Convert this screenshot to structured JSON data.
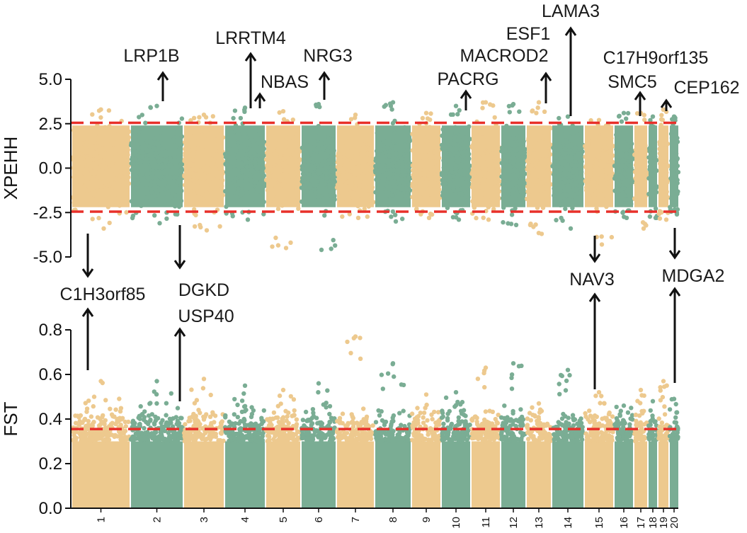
{
  "chart_data": {
    "type": "scatter",
    "colors": {
      "tan": "#edc98e",
      "green": "#7aad94",
      "threshold": "#e8302a",
      "arrow": "#111111"
    },
    "chromosomes": [
      "1",
      "2",
      "3",
      "4",
      "5",
      "6",
      "7",
      "8",
      "9",
      "10",
      "11",
      "12",
      "13",
      "14",
      "15",
      "16",
      "17",
      "18",
      "19",
      "20"
    ],
    "chromosome_colors": [
      "tan",
      "green",
      "tan",
      "green",
      "tan",
      "green",
      "tan",
      "green",
      "tan",
      "green",
      "tan",
      "green",
      "tan",
      "green",
      "tan",
      "green",
      "tan",
      "green",
      "tan",
      "green"
    ],
    "panels": [
      {
        "id": "xpehh",
        "ylabel": "XPEHH",
        "ylim": [
          -5.0,
          5.0
        ],
        "yticks": [
          "-5.0",
          "-2.5",
          "0.0",
          "2.5",
          "5.0"
        ],
        "thresholds": [
          2.55,
          -2.45
        ],
        "per_chromosome": [
          {
            "chr": "1",
            "max": 3.3,
            "min": -3.4
          },
          {
            "chr": "2",
            "max": 3.5,
            "min": -3.1
          },
          {
            "chr": "3",
            "max": 3.0,
            "min": -3.5
          },
          {
            "chr": "4",
            "max": 3.4,
            "min": -2.9
          },
          {
            "chr": "5",
            "max": 3.2,
            "min": -4.5
          },
          {
            "chr": "6",
            "max": 3.6,
            "min": -4.6
          },
          {
            "chr": "7",
            "max": 3.0,
            "min": -2.8
          },
          {
            "chr": "8",
            "max": 3.7,
            "min": -3.0
          },
          {
            "chr": "9",
            "max": 3.1,
            "min": -2.8
          },
          {
            "chr": "10",
            "max": 3.5,
            "min": -2.9
          },
          {
            "chr": "11",
            "max": 3.7,
            "min": -2.9
          },
          {
            "chr": "12",
            "max": 3.6,
            "min": -3.2
          },
          {
            "chr": "13",
            "max": 3.7,
            "min": -3.7
          },
          {
            "chr": "14",
            "max": 2.9,
            "min": -3.4
          },
          {
            "chr": "15",
            "max": 2.7,
            "min": -4.3
          },
          {
            "chr": "16",
            "max": 3.1,
            "min": -2.8
          },
          {
            "chr": "17",
            "max": 3.1,
            "min": -3.4
          },
          {
            "chr": "18",
            "max": 2.9,
            "min": -2.8
          },
          {
            "chr": "19",
            "max": 3.3,
            "min": -2.9
          },
          {
            "chr": "20",
            "max": 2.9,
            "min": -2.6
          }
        ],
        "annotations": [
          {
            "gene": "LRP1B",
            "chr": "2",
            "direction": "up",
            "peak": 3.5
          },
          {
            "gene": "LRRTM4",
            "chr": "4",
            "direction": "up",
            "peak": 3.4
          },
          {
            "gene": "NBAS",
            "chr": "4",
            "direction": "up",
            "peak": 3.4
          },
          {
            "gene": "NRG3",
            "chr": "6",
            "direction": "up",
            "peak": 3.6
          },
          {
            "gene": "PACRG",
            "chr": "10",
            "direction": "up",
            "peak": 3.5
          },
          {
            "gene": "MACROD2",
            "chr": "13",
            "direction": "up",
            "peak": 3.7
          },
          {
            "gene": "ESF1",
            "chr": "13",
            "direction": "up",
            "peak": 3.7
          },
          {
            "gene": "LAMA3",
            "chr": "14",
            "direction": "up",
            "peak": 2.9
          },
          {
            "gene": "C17H9orf135",
            "chr": "17",
            "direction": "up",
            "peak": 3.1
          },
          {
            "gene": "SMC5",
            "chr": "17",
            "direction": "up",
            "peak": 3.1
          },
          {
            "gene": "CEP162",
            "chr": "19",
            "direction": "up",
            "peak": 3.3
          },
          {
            "gene": "C1H3orf85",
            "chr": "1",
            "direction": "down",
            "peak": -3.4
          },
          {
            "gene": "DGKD",
            "chr": "2",
            "direction": "down",
            "peak": -3.1
          },
          {
            "gene": "USP40",
            "chr": "2",
            "direction": "down",
            "peak": -3.1
          },
          {
            "gene": "NAV3",
            "chr": "15",
            "direction": "down",
            "peak": -4.3
          },
          {
            "gene": "MDGA2",
            "chr": "20",
            "direction": "down",
            "peak": -2.6
          }
        ]
      },
      {
        "id": "fst",
        "ylabel": "FST",
        "ylim": [
          0.0,
          0.8
        ],
        "yticks": [
          "0.0",
          "0.2",
          "0.4",
          "0.6",
          "0.8"
        ],
        "thresholds": [
          0.355
        ],
        "per_chromosome": [
          {
            "chr": "1",
            "max": 0.57
          },
          {
            "chr": "2",
            "max": 0.57
          },
          {
            "chr": "3",
            "max": 0.58
          },
          {
            "chr": "4",
            "max": 0.55
          },
          {
            "chr": "5",
            "max": 0.53
          },
          {
            "chr": "6",
            "max": 0.56
          },
          {
            "chr": "7",
            "max": 0.77
          },
          {
            "chr": "8",
            "max": 0.65
          },
          {
            "chr": "9",
            "max": 0.51
          },
          {
            "chr": "10",
            "max": 0.52
          },
          {
            "chr": "11",
            "max": 0.63
          },
          {
            "chr": "12",
            "max": 0.65
          },
          {
            "chr": "13",
            "max": 0.47
          },
          {
            "chr": "14",
            "max": 0.62
          },
          {
            "chr": "15",
            "max": 0.52
          },
          {
            "chr": "16",
            "max": 0.46
          },
          {
            "chr": "17",
            "max": 0.53
          },
          {
            "chr": "18",
            "max": 0.48
          },
          {
            "chr": "19",
            "max": 0.57
          },
          {
            "chr": "20",
            "max": 0.49
          }
        ]
      }
    ]
  }
}
